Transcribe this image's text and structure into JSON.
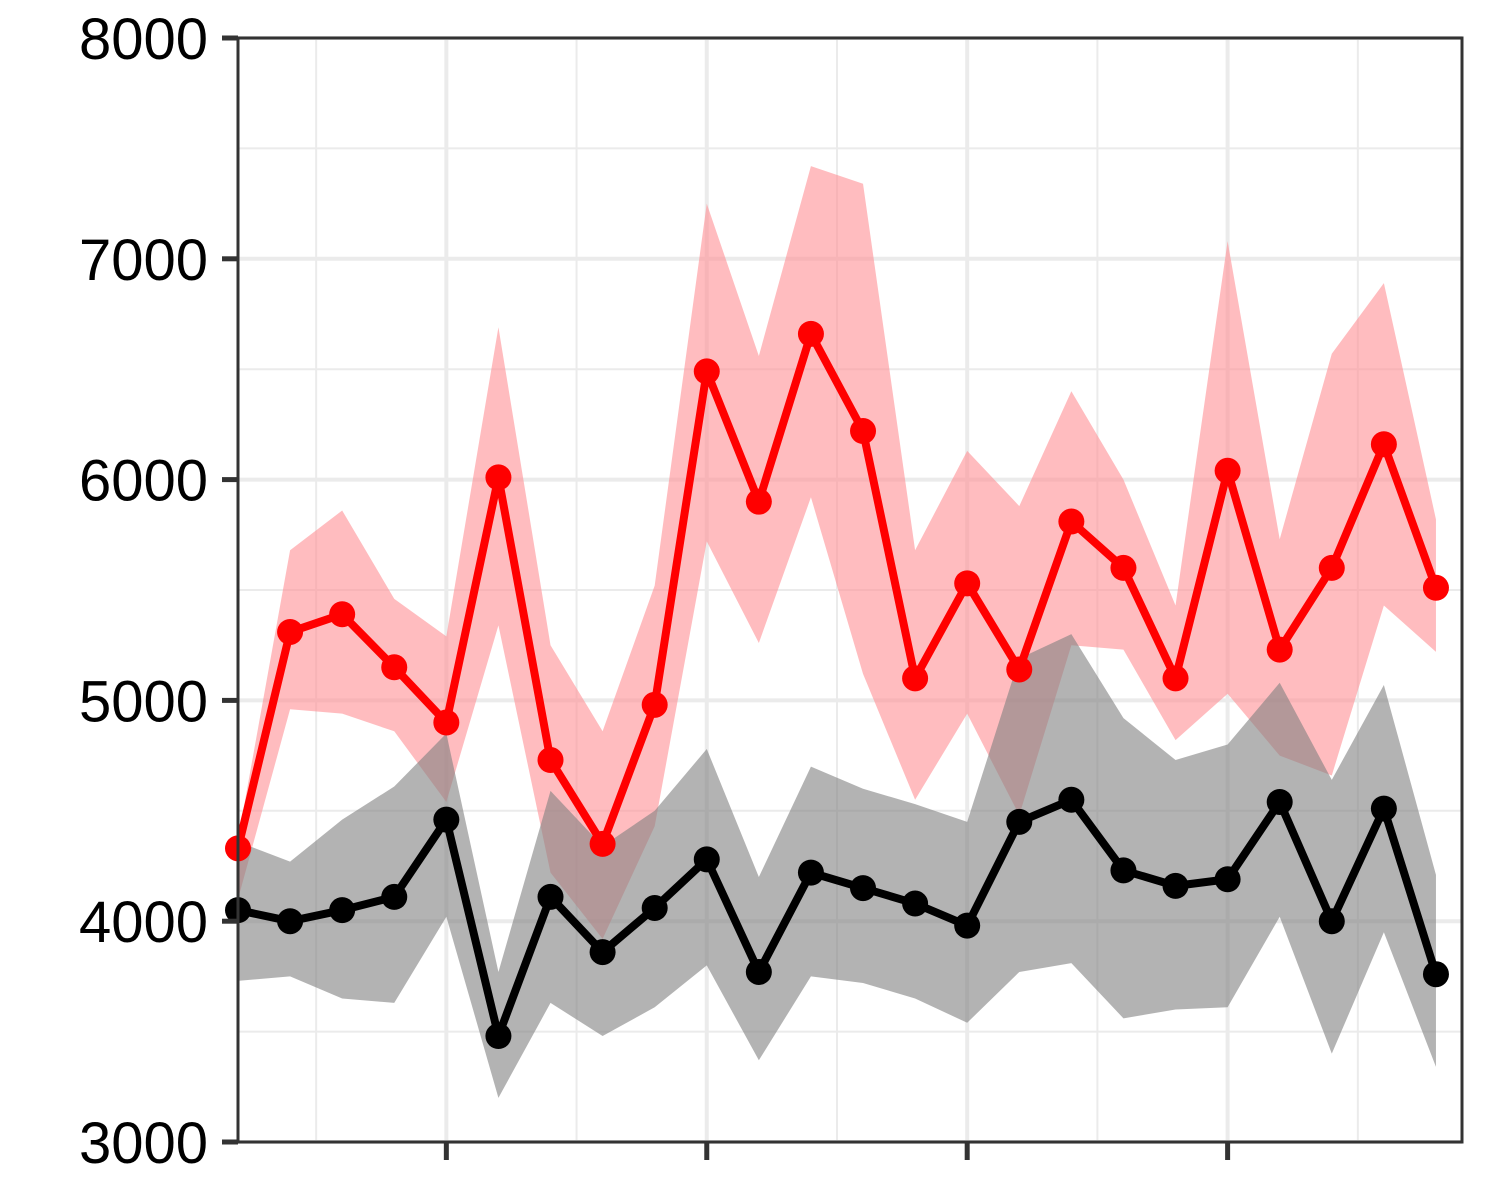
{
  "chart_data": {
    "type": "line",
    "title": "",
    "xlabel": "",
    "ylabel": "",
    "xlim": [
      0,
      23.5
    ],
    "ylim": [
      3000,
      8000
    ],
    "x_ticks": [
      4,
      9,
      14,
      19
    ],
    "y_ticks": [
      3000,
      4000,
      5000,
      6000,
      7000,
      8000
    ],
    "y_tick_labels": [
      "3000",
      "4000",
      "5000",
      "6000",
      "7000",
      "8000"
    ],
    "grid": true,
    "x": [
      0,
      1,
      2,
      3,
      4,
      5,
      6,
      7,
      8,
      9,
      10,
      11,
      12,
      13,
      14,
      15,
      16,
      17,
      18,
      19,
      20,
      21,
      22,
      23
    ],
    "series": [
      {
        "color": "#ff0000",
        "band_color": "#ff8f94",
        "values": [
          4330,
          5310,
          5390,
          5150,
          4900,
          6010,
          4730,
          4350,
          4980,
          6490,
          5900,
          6660,
          6220,
          5100,
          5530,
          5140,
          5810,
          5600,
          5100,
          6040,
          5230,
          5600,
          6160,
          5510
        ],
        "lower": [
          4100,
          4960,
          4940,
          4860,
          4540,
          5340,
          4220,
          3920,
          4430,
          5720,
          5260,
          5920,
          5120,
          4550,
          4940,
          4480,
          5250,
          5230,
          4820,
          5030,
          4750,
          4660,
          5430,
          5220
        ],
        "upper": [
          4370,
          5680,
          5860,
          5460,
          5290,
          6690,
          5250,
          4860,
          5520,
          7250,
          6560,
          7420,
          7340,
          5680,
          6130,
          5880,
          6400,
          6000,
          5430,
          7080,
          5730,
          6570,
          6890,
          5820
        ]
      },
      {
        "color": "#000000",
        "band_color": "#808080",
        "values": [
          4050,
          4000,
          4050,
          4110,
          4460,
          3480,
          4110,
          3860,
          4060,
          4280,
          3770,
          4220,
          4150,
          4080,
          3980,
          4450,
          4550,
          4230,
          4160,
          4190,
          4540,
          4000,
          4510,
          3760
        ],
        "lower": [
          3730,
          3750,
          3650,
          3630,
          4020,
          3200,
          3630,
          3480,
          3610,
          3800,
          3370,
          3750,
          3720,
          3650,
          3540,
          3770,
          3810,
          3560,
          3600,
          3610,
          4020,
          3400,
          3950,
          3340
        ],
        "upper": [
          4360,
          4270,
          4460,
          4610,
          4850,
          3770,
          4590,
          4340,
          4500,
          4780,
          4200,
          4700,
          4600,
          4530,
          4450,
          5190,
          5300,
          4920,
          4730,
          4800,
          5080,
          4640,
          5070,
          4210
        ]
      }
    ]
  }
}
